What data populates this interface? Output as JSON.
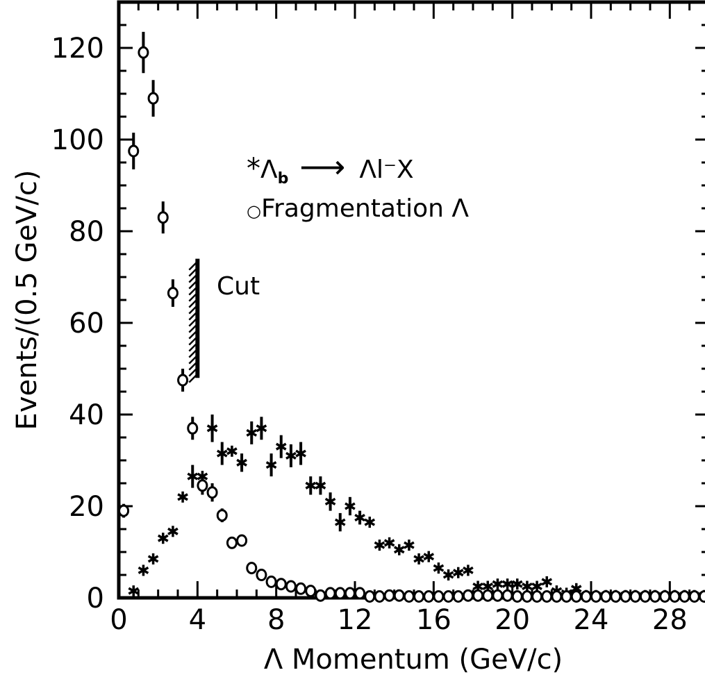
{
  "chart_data": {
    "type": "scatter",
    "xlabel": "Λ Momentum  (GeV/c)",
    "ylabel": "Events/(0.5 GeV/c)",
    "xlim": [
      0,
      30
    ],
    "ylim": [
      0,
      130
    ],
    "x_ticks": [
      "0",
      "4",
      "8",
      "12",
      "16",
      "20",
      "24",
      "28"
    ],
    "y_ticks": [
      "0",
      "20",
      "40",
      "60",
      "80",
      "100",
      "120"
    ],
    "cut": {
      "label": "Cut",
      "x": 4.0,
      "y_range": [
        48,
        74
      ]
    },
    "series": [
      {
        "name": "Λb → Λl⁻X",
        "marker": "asterisk",
        "points": [
          [
            0.75,
            1.5
          ],
          [
            1.25,
            6
          ],
          [
            1.75,
            8.5
          ],
          [
            2.25,
            13
          ],
          [
            2.75,
            14.5
          ],
          [
            3.25,
            22
          ],
          [
            3.75,
            26.5
          ],
          [
            4.25,
            26.5
          ],
          [
            4.75,
            37
          ],
          [
            5.25,
            31.5
          ],
          [
            5.75,
            32
          ],
          [
            6.25,
            29.5
          ],
          [
            6.75,
            36
          ],
          [
            7.25,
            37
          ],
          [
            7.75,
            29
          ],
          [
            8.25,
            33
          ],
          [
            8.75,
            31
          ],
          [
            9.25,
            31.5
          ],
          [
            9.75,
            24.5
          ],
          [
            10.25,
            24.5
          ],
          [
            10.75,
            21
          ],
          [
            11.25,
            16.5
          ],
          [
            11.75,
            20
          ],
          [
            12.25,
            17.5
          ],
          [
            12.75,
            16.5
          ],
          [
            13.25,
            11.5
          ],
          [
            13.75,
            12
          ],
          [
            14.25,
            10.5
          ],
          [
            14.75,
            11.5
          ],
          [
            15.25,
            8.5
          ],
          [
            15.75,
            9
          ],
          [
            16.25,
            6.5
          ],
          [
            16.75,
            5
          ],
          [
            17.25,
            5.5
          ],
          [
            17.75,
            6
          ],
          [
            18.25,
            2.5
          ],
          [
            18.75,
            2.5
          ],
          [
            19.25,
            3
          ],
          [
            19.75,
            3
          ],
          [
            20.25,
            3
          ],
          [
            20.75,
            2.5
          ],
          [
            21.25,
            2.5
          ],
          [
            21.75,
            3.5
          ],
          [
            22.25,
            1.5
          ],
          [
            22.75,
            1
          ],
          [
            23.25,
            2
          ],
          [
            23.75,
            0.5
          ],
          [
            24.25,
            0.5
          ],
          [
            24.75,
            0.5
          ],
          [
            25.25,
            0.5
          ],
          [
            25.75,
            0.5
          ],
          [
            26.25,
            0.5
          ],
          [
            26.75,
            0.5
          ],
          [
            27.25,
            0.5
          ],
          [
            27.75,
            0.5
          ],
          [
            28.25,
            0.5
          ],
          [
            28.75,
            0.5
          ],
          [
            29.25,
            0.5
          ],
          [
            29.75,
            0.5
          ]
        ],
        "error_bars": [
          [
            3.75,
            2.5
          ],
          [
            4.75,
            3
          ],
          [
            5.25,
            2.5
          ],
          [
            6.25,
            2
          ],
          [
            6.75,
            2.5
          ],
          [
            7.25,
            2.5
          ],
          [
            7.75,
            2.5
          ],
          [
            8.25,
            2.5
          ],
          [
            8.75,
            2.5
          ],
          [
            9.25,
            2.5
          ],
          [
            9.75,
            2
          ],
          [
            10.25,
            2
          ],
          [
            10.75,
            2
          ],
          [
            11.25,
            2
          ],
          [
            11.75,
            2
          ],
          [
            12.25,
            1.5
          ]
        ]
      },
      {
        "name": "Fragmentation Λ",
        "marker": "open-circle",
        "points": [
          [
            0.25,
            19
          ],
          [
            0.75,
            97.5
          ],
          [
            1.25,
            119
          ],
          [
            1.75,
            109
          ],
          [
            2.25,
            83
          ],
          [
            2.75,
            66.5
          ],
          [
            3.25,
            47.5
          ],
          [
            3.75,
            37
          ],
          [
            4.25,
            24.5
          ],
          [
            4.75,
            23
          ],
          [
            5.25,
            18
          ],
          [
            5.75,
            12
          ],
          [
            6.25,
            12.5
          ],
          [
            6.75,
            6.5
          ],
          [
            7.25,
            5
          ],
          [
            7.75,
            3.5
          ],
          [
            8.25,
            3
          ],
          [
            8.75,
            2.5
          ],
          [
            9.25,
            2
          ],
          [
            9.75,
            1.5
          ],
          [
            10.25,
            0.5
          ],
          [
            10.75,
            1
          ],
          [
            11.25,
            1
          ],
          [
            11.75,
            1
          ],
          [
            12.25,
            1
          ],
          [
            12.75,
            0.3
          ],
          [
            13.25,
            0.3
          ],
          [
            13.75,
            0.5
          ],
          [
            14.25,
            0.5
          ],
          [
            14.75,
            0.3
          ],
          [
            15.25,
            0.3
          ],
          [
            15.75,
            0.3
          ],
          [
            16.25,
            0.3
          ],
          [
            16.75,
            0.3
          ],
          [
            17.25,
            0.3
          ],
          [
            17.75,
            0.5
          ],
          [
            18.25,
            0.5
          ],
          [
            18.75,
            0.5
          ],
          [
            19.25,
            0.5
          ],
          [
            19.75,
            0.5
          ],
          [
            20.25,
            0.3
          ],
          [
            20.75,
            0.3
          ],
          [
            21.25,
            0.3
          ],
          [
            21.75,
            0.3
          ],
          [
            22.25,
            0.3
          ],
          [
            22.75,
            0.3
          ],
          [
            23.25,
            0.3
          ],
          [
            23.75,
            0.3
          ],
          [
            24.25,
            0.3
          ],
          [
            24.75,
            0.3
          ],
          [
            25.25,
            0.3
          ],
          [
            25.75,
            0.3
          ],
          [
            26.25,
            0.3
          ],
          [
            26.75,
            0.3
          ],
          [
            27.25,
            0.3
          ],
          [
            27.75,
            0.3
          ],
          [
            28.25,
            0.3
          ],
          [
            28.75,
            0.3
          ],
          [
            29.25,
            0.3
          ],
          [
            29.75,
            0.3
          ]
        ],
        "error_bars": [
          [
            0.25,
            1.5
          ],
          [
            0.75,
            4
          ],
          [
            1.25,
            4.5
          ],
          [
            1.75,
            4
          ],
          [
            2.25,
            3.5
          ],
          [
            2.75,
            3
          ],
          [
            3.25,
            2.5
          ],
          [
            3.75,
            2.5
          ],
          [
            4.25,
            2
          ],
          [
            4.75,
            2
          ],
          [
            5.25,
            1.5
          ]
        ]
      }
    ],
    "legend": {
      "entry1_symbol": "*",
      "entry1_main": "Λ",
      "entry1_sub": "b",
      "entry1_arrow": "⟶",
      "entry1_rest": "Λl⁻X",
      "entry2_symbol": "○",
      "entry2_text": "Fragmentation Λ",
      "placement": "upper-center"
    }
  }
}
